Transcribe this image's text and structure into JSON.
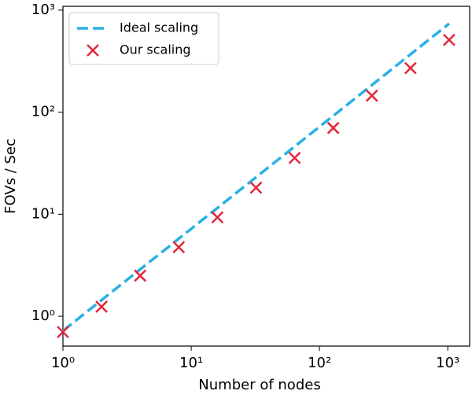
{
  "chart_data": {
    "type": "line",
    "xlabel": "Number of nodes",
    "ylabel": "FOVs / Sec",
    "xscale": "log",
    "yscale": "log",
    "xlim": [
      1,
      1480
    ],
    "ylim": [
      0.51,
      1090
    ],
    "xticks": [
      {
        "value": 1,
        "label": "10⁰"
      },
      {
        "value": 10,
        "label": "10¹"
      },
      {
        "value": 100,
        "label": "10²"
      },
      {
        "value": 1000,
        "label": "10³"
      }
    ],
    "yticks": [
      {
        "value": 1,
        "label": "10⁰"
      },
      {
        "value": 10,
        "label": "10¹"
      },
      {
        "value": 100,
        "label": "10²"
      },
      {
        "value": 1000,
        "label": "10³"
      }
    ],
    "legend": "upper left",
    "series": [
      {
        "name": "Ideal scaling",
        "color": "#2ab0e6",
        "style": "dashed",
        "x": [
          1,
          1024
        ],
        "values": [
          0.72,
          737
        ]
      },
      {
        "name": "Our scaling",
        "color": "#e0283a",
        "style": "markers",
        "x": [
          1,
          2,
          4,
          8,
          16,
          32,
          64,
          128,
          256,
          512,
          1024
        ],
        "values": [
          0.7,
          1.24,
          2.5,
          4.75,
          9.3,
          18.2,
          35.6,
          70,
          145,
          270,
          510
        ]
      }
    ]
  }
}
